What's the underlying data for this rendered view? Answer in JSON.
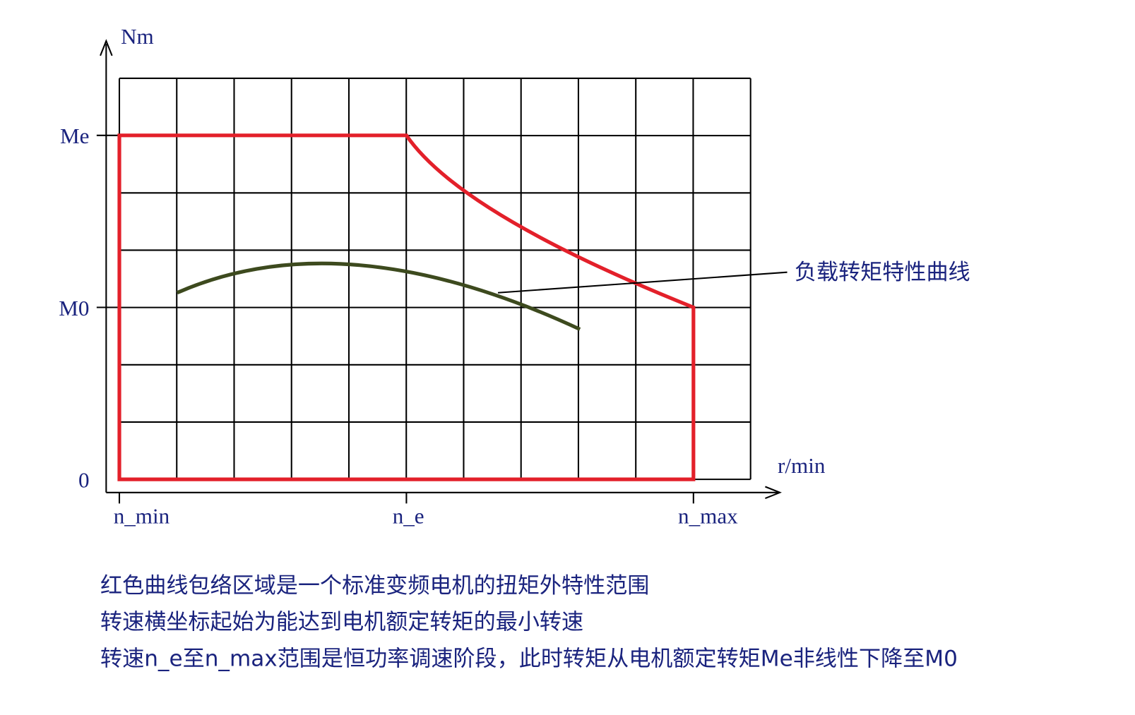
{
  "axes": {
    "y_unit": "Nm",
    "x_unit": "r/min",
    "y_labels": [
      "Me",
      "M0",
      "0"
    ],
    "x_labels": [
      "n_min",
      "n_e",
      "n_max"
    ]
  },
  "annotation": "负载转矩特性曲线",
  "notes": [
    "红色曲线包络区域是一个标准变频电机的扭矩外特性范围",
    "转速横坐标起始为能达到电机额定转矩的最小转速",
    "转速n_e至n_max范围是恒功率调速阶段，此时转矩从电机额定转矩Me非线性下降至M0"
  ]
}
